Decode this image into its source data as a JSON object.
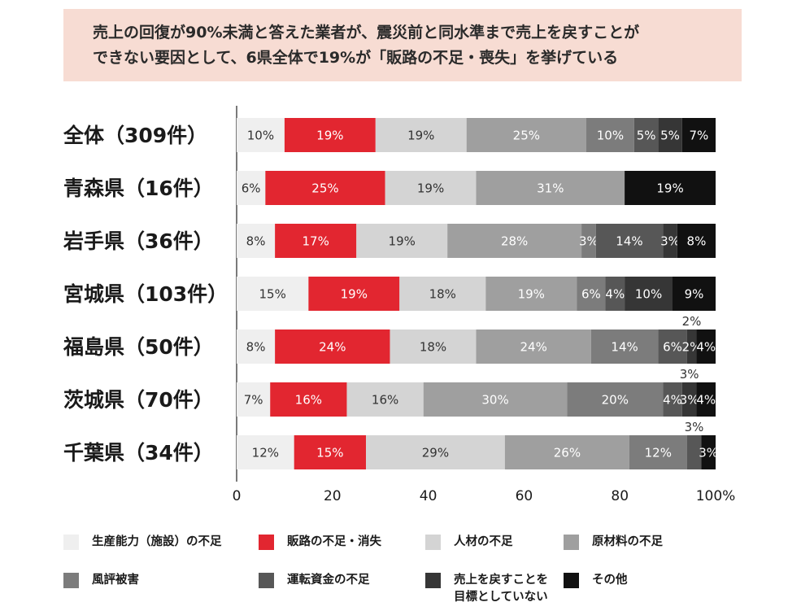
{
  "headline": {
    "line1": "売上の回復が90%未満と答えた業者が、震災前と同水準まで売上を戻すことが",
    "line2": "できない要因として、6県全体で19%が「販路の不足・喪失」を挙げている"
  },
  "chart_data": {
    "type": "bar",
    "orientation": "horizontal",
    "stacked": true,
    "percent": true,
    "title": "売上の回復が90%未満と答えた業者が、震災前と同水準まで売上を戻すことができない要因として、6県全体で19%が「販路の不足・喪失」を挙げている",
    "categories": [
      "全体（309件）",
      "青森県（16件）",
      "岩手県（36件）",
      "宮城県（103件）",
      "福島県（50件）",
      "茨城県（70件）",
      "千葉県（34件）"
    ],
    "xlim": [
      0,
      100
    ],
    "xticks": [
      "0",
      "20",
      "40",
      "60",
      "80",
      "100%"
    ],
    "grid": false,
    "legend_position": "bottom",
    "series": [
      {
        "name": "生産能力（施設）の不足",
        "color": "#efefef",
        "text_color": "#333333",
        "values": [
          10,
          6,
          8,
          15,
          8,
          7,
          12
        ],
        "labels": [
          "10%",
          "6%",
          "8%",
          "15%",
          "8%",
          "7%",
          "12%"
        ]
      },
      {
        "name": "販路の不足・消失",
        "color": "#e22630",
        "text_color": "#ffffff",
        "values": [
          19,
          25,
          17,
          19,
          24,
          16,
          15
        ],
        "labels": [
          "19%",
          "25%",
          "17%",
          "19%",
          "24%",
          "16%",
          "15%"
        ]
      },
      {
        "name": "人材の不足",
        "color": "#d4d4d4",
        "text_color": "#333333",
        "values": [
          19,
          19,
          19,
          18,
          18,
          16,
          29
        ],
        "labels": [
          "19%",
          "19%",
          "19%",
          "18%",
          "18%",
          "16%",
          "29%"
        ]
      },
      {
        "name": "原材料の不足",
        "color": "#9f9f9f",
        "text_color": "#ffffff",
        "values": [
          25,
          31,
          28,
          19,
          24,
          30,
          26
        ],
        "labels": [
          "25%",
          "31%",
          "28%",
          "19%",
          "24%",
          "30%",
          "26%"
        ]
      },
      {
        "name": "風評被害",
        "color": "#7c7c7c",
        "text_color": "#ffffff",
        "values": [
          10,
          0,
          3,
          6,
          14,
          20,
          12
        ],
        "labels": [
          "10%",
          "",
          "3%",
          "6%",
          "14%",
          "20%",
          "12%"
        ]
      },
      {
        "name": "運転資金の不足",
        "color": "#575757",
        "text_color": "#ffffff",
        "values": [
          5,
          0,
          14,
          4,
          6,
          4,
          3
        ],
        "labels": [
          "5%",
          "",
          "14%",
          "4%",
          "6%",
          "4%",
          ""
        ]
      },
      {
        "name": "売上を戻すことを\n目標としていない",
        "color": "#363636",
        "text_color": "#ffffff",
        "values": [
          5,
          0,
          3,
          10,
          2,
          3,
          0
        ],
        "labels": [
          "5%",
          "",
          "3%",
          "10%",
          "2%",
          "3%",
          ""
        ]
      },
      {
        "name": "その他",
        "color": "#111111",
        "text_color": "#ffffff",
        "values": [
          7,
          19,
          8,
          9,
          4,
          4,
          3
        ],
        "labels": [
          "7%",
          "19%",
          "8%",
          "9%",
          "4%",
          "4%",
          "3%"
        ]
      }
    ],
    "outside_labels": [
      {
        "row": 4,
        "series": 6,
        "text": "2%"
      },
      {
        "row": 5,
        "series": 6,
        "text": "3%"
      },
      {
        "row": 6,
        "series": 5,
        "text": "3%"
      }
    ]
  }
}
